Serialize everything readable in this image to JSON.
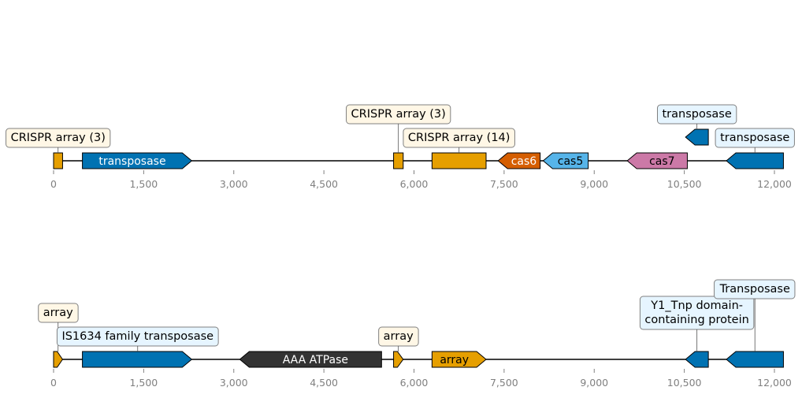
{
  "colors": {
    "crispr": "#e69f00",
    "transposase": "#0072b2",
    "cas6": "#d55e00",
    "cas5": "#56b4e9",
    "cas7": "#cc79a7",
    "atpase": "#333333",
    "box_crispr_fill": "#fff7e6",
    "box_tnp_fill": "#e6f5ff",
    "box_edge": "#808080",
    "axis_text": "#808080"
  },
  "tracks": [
    {
      "id": "top",
      "ticks": [
        {
          "value": 0,
          "label": "0"
        },
        {
          "value": 1500,
          "label": "1,500"
        },
        {
          "value": 3000,
          "label": "3,000"
        },
        {
          "value": 4500,
          "label": "4,500"
        },
        {
          "value": 6000,
          "label": "6,000"
        },
        {
          "value": 7500,
          "label": "7,500"
        },
        {
          "value": 9000,
          "label": "9,000"
        },
        {
          "value": 10500,
          "label": "10,500"
        },
        {
          "value": 12000,
          "label": "12,000"
        }
      ],
      "features": [
        {
          "name": "crispr-array-1",
          "start": 0,
          "end": 150,
          "strand": 0,
          "color": "crispr",
          "label": ""
        },
        {
          "name": "transposase-gene-1",
          "start": 480,
          "end": 2300,
          "strand": 1,
          "color": "transposase",
          "label": "transposase",
          "label_color": "#ffffff"
        },
        {
          "name": "crispr-array-2",
          "start": 5660,
          "end": 5820,
          "strand": 0,
          "color": "crispr",
          "label": ""
        },
        {
          "name": "crispr-array-3",
          "start": 6300,
          "end": 7200,
          "strand": 0,
          "color": "crispr",
          "label": ""
        },
        {
          "name": "cas6-gene",
          "start": 7400,
          "end": 8100,
          "strand": -1,
          "color": "cas6",
          "label": "cas6",
          "label_color": "#ffffff"
        },
        {
          "name": "cas5-gene",
          "start": 8150,
          "end": 8900,
          "strand": -1,
          "color": "cas5",
          "label": "cas5",
          "label_color": "#000000"
        },
        {
          "name": "cas7-gene",
          "start": 9550,
          "end": 10550,
          "strand": -1,
          "color": "cas7",
          "label": "cas7",
          "label_color": "#000000"
        },
        {
          "name": "transposase-gene-2",
          "start": 10520,
          "end": 10900,
          "strand": -1,
          "color": "transposase",
          "label": "",
          "raised": true
        },
        {
          "name": "transposase-gene-3",
          "start": 11200,
          "end": 12150,
          "strand": -1,
          "color": "transposase",
          "label": ""
        }
      ],
      "annotations": [
        {
          "text": "CRISPR array (3)",
          "kind": "crispr",
          "x": 75,
          "level": 1
        },
        {
          "text": "CRISPR array (3)",
          "kind": "crispr",
          "x": 5740,
          "level": 2
        },
        {
          "text": "CRISPR array (14)",
          "kind": "crispr",
          "x": 6750,
          "level": 1
        },
        {
          "text": "transposase",
          "kind": "tnp",
          "x": 10710,
          "level": 2,
          "raised": true
        },
        {
          "text": "transposase",
          "kind": "tnp",
          "x": 11675,
          "level": 1
        }
      ]
    },
    {
      "id": "bottom",
      "ticks": [
        {
          "value": 0,
          "label": "0"
        },
        {
          "value": 1500,
          "label": "1,500"
        },
        {
          "value": 3000,
          "label": "3,000"
        },
        {
          "value": 4500,
          "label": "4,500"
        },
        {
          "value": 6000,
          "label": "6,000"
        },
        {
          "value": 7500,
          "label": "7,500"
        },
        {
          "value": 9000,
          "label": "9,000"
        },
        {
          "value": 10500,
          "label": "10,500"
        },
        {
          "value": 12000,
          "label": "12,000"
        }
      ],
      "features": [
        {
          "name": "array-1",
          "start": 0,
          "end": 150,
          "strand": 1,
          "color": "crispr",
          "label": ""
        },
        {
          "name": "is1634-transposase-gene",
          "start": 480,
          "end": 2300,
          "strand": 1,
          "color": "transposase",
          "label": ""
        },
        {
          "name": "aaa-atpase-gene",
          "start": 3100,
          "end": 5460,
          "strand": -1,
          "color": "atpase",
          "label": "AAA ATPase",
          "label_color": "#ffffff"
        },
        {
          "name": "array-2",
          "start": 5660,
          "end": 5820,
          "strand": 1,
          "color": "crispr",
          "label": ""
        },
        {
          "name": "array-3",
          "start": 6300,
          "end": 7200,
          "strand": 1,
          "color": "crispr",
          "label": "array",
          "label_color": "#000000"
        },
        {
          "name": "y1-tnp-gene",
          "start": 10520,
          "end": 10900,
          "strand": -1,
          "color": "transposase",
          "label": ""
        },
        {
          "name": "transposase-gene",
          "start": 11200,
          "end": 12150,
          "strand": -1,
          "color": "transposase",
          "label": ""
        }
      ],
      "annotations": [
        {
          "text": "array",
          "kind": "crispr",
          "x": 75,
          "level": 3
        },
        {
          "text": "IS1634 family transposase",
          "kind": "tnp",
          "x": 1400,
          "level": 1
        },
        {
          "text": "array",
          "kind": "crispr",
          "x": 5740,
          "level": 1
        },
        {
          "text": "Y1_Tnp domain-\ncontaining protein",
          "kind": "tnp",
          "x": 10710,
          "level": 2
        },
        {
          "text": "Transposase",
          "kind": "tnp",
          "x": 11675,
          "level": 4
        }
      ]
    }
  ]
}
